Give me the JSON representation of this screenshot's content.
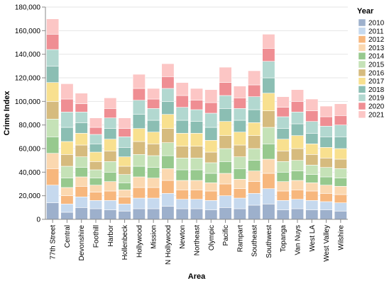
{
  "chart_data": {
    "type": "bar",
    "stacked": true,
    "title": "",
    "xlabel": "Area",
    "ylabel": "Crime Index",
    "ylim": [
      0,
      180000
    ],
    "yticks": [
      0,
      20000,
      40000,
      60000,
      80000,
      100000,
      120000,
      140000,
      160000,
      180000
    ],
    "ytick_labels": [
      "0",
      "20,000",
      "40,000",
      "60,000",
      "80,000",
      "100,000",
      "120,000",
      "140,000",
      "160,000",
      "180,000"
    ],
    "grid": true,
    "legend": {
      "title": "Year",
      "placement": "right"
    },
    "categories": [
      "77th Street",
      "Central",
      "Devonshire",
      "Foothill",
      "Harbor",
      "Hollenbeck",
      "Hollywood",
      "Mission",
      "N Hollywood",
      "Newton",
      "Northeast",
      "Olympic",
      "Pacific",
      "Rampart",
      "Southeast",
      "Southwest",
      "Topanga",
      "Van Nuys",
      "West LA",
      "West Valley",
      "Wilshire"
    ],
    "series": [
      {
        "name": "2010",
        "color": "#9db0cc",
        "values": [
          14000,
          6000,
          10000,
          9000,
          8000,
          7000,
          9000,
          9000,
          11000,
          9000,
          9000,
          8000,
          10000,
          9000,
          12000,
          13000,
          8000,
          9000,
          8000,
          8000,
          7000
        ]
      },
      {
        "name": "2011",
        "color": "#c6d9ee",
        "values": [
          15000,
          7000,
          9000,
          7000,
          8000,
          6000,
          9000,
          9000,
          11000,
          8000,
          8000,
          8000,
          10000,
          9000,
          10000,
          13000,
          8000,
          8000,
          8000,
          7000,
          7000
        ]
      },
      {
        "name": "2012",
        "color": "#f7b77d",
        "values": [
          14000,
          7000,
          9000,
          7000,
          8000,
          6000,
          9000,
          9000,
          11000,
          8000,
          8000,
          8000,
          10000,
          8000,
          10000,
          13000,
          8000,
          8000,
          8000,
          7000,
          7000
        ]
      },
      {
        "name": "2013",
        "color": "#fbd8b0",
        "values": [
          13000,
          7000,
          8000,
          6000,
          8000,
          6000,
          9000,
          8000,
          10000,
          8000,
          8000,
          7000,
          9000,
          8000,
          9000,
          12000,
          8000,
          8000,
          7000,
          7000,
          7000
        ]
      },
      {
        "name": "2014",
        "color": "#97c98e",
        "values": [
          14000,
          8000,
          8000,
          6000,
          8000,
          6000,
          9000,
          9000,
          11000,
          9000,
          9000,
          8000,
          10000,
          9000,
          9000,
          13000,
          8000,
          8000,
          7000,
          7000,
          7000
        ]
      },
      {
        "name": "2015",
        "color": "#c5e2b7",
        "values": [
          15000,
          10000,
          9000,
          7000,
          9000,
          7000,
          10000,
          10000,
          11000,
          10000,
          10000,
          9000,
          11000,
          10000,
          10000,
          14000,
          9000,
          9000,
          8000,
          8000,
          8000
        ]
      },
      {
        "name": "2016",
        "color": "#d6bb7e",
        "values": [
          15000,
          10000,
          10000,
          7000,
          9000,
          7000,
          11000,
          10000,
          12000,
          10000,
          10000,
          9000,
          11000,
          10000,
          11000,
          14000,
          9000,
          10000,
          9000,
          8000,
          8000
        ]
      },
      {
        "name": "2017",
        "color": "#f8e08f",
        "values": [
          16000,
          11000,
          10000,
          8000,
          10000,
          8000,
          11000,
          10000,
          12000,
          11000,
          11000,
          10000,
          12000,
          11000,
          11000,
          15000,
          10000,
          11000,
          9000,
          9000,
          9000
        ]
      },
      {
        "name": "2018",
        "color": "#8bbeb3",
        "values": [
          14000,
          12000,
          9000,
          7000,
          9000,
          8000,
          12000,
          10000,
          11000,
          11000,
          10000,
          11000,
          11000,
          10000,
          11000,
          13000,
          9000,
          10000,
          9000,
          9000,
          10000
        ]
      },
      {
        "name": "2019",
        "color": "#b2d8d0",
        "values": [
          14000,
          13000,
          9000,
          8000,
          9000,
          9000,
          12000,
          10000,
          11000,
          11000,
          10000,
          12000,
          11000,
          10000,
          11000,
          14000,
          10000,
          10000,
          10000,
          9000,
          10000
        ]
      },
      {
        "name": "2020",
        "color": "#ef8e93",
        "values": [
          13000,
          11000,
          7000,
          6000,
          8000,
          7000,
          10000,
          8000,
          10000,
          10000,
          8000,
          9000,
          11000,
          9000,
          10000,
          11000,
          8000,
          9000,
          9000,
          8000,
          8000
        ]
      },
      {
        "name": "2021",
        "color": "#fcc6c5",
        "values": [
          13000,
          13000,
          9000,
          8000,
          9000,
          9000,
          12000,
          9000,
          11000,
          11000,
          10000,
          11000,
          13000,
          10000,
          12000,
          12000,
          9000,
          10000,
          10000,
          9000,
          10000
        ]
      }
    ]
  }
}
